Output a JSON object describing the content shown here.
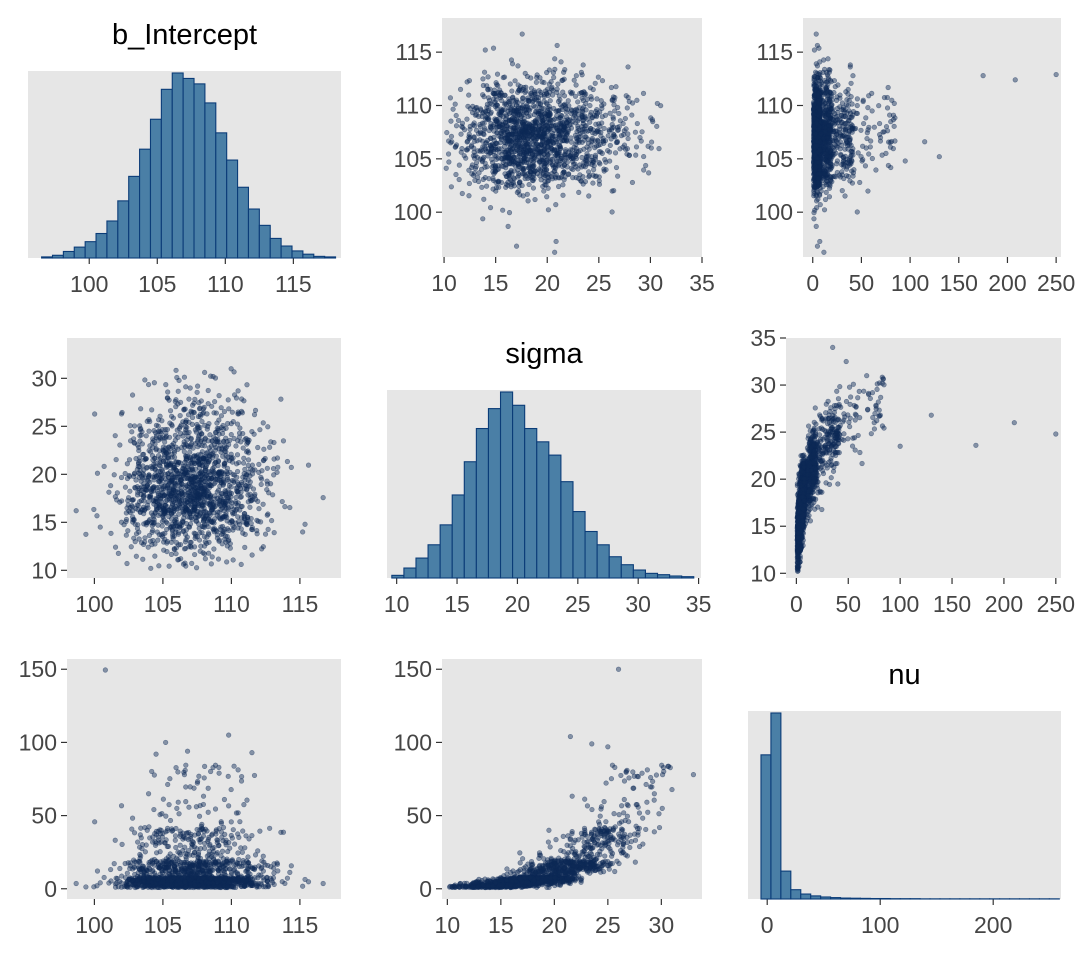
{
  "colors": {
    "panel_background": "#e6e6e6",
    "bar_fill": "#4a7fa6",
    "bar_outline": "#0b3c78",
    "point": "#0d2a57"
  },
  "chart_data": [
    {
      "type": "bar",
      "title": "b_Intercept",
      "xlim": [
        95.5,
        118.5
      ],
      "xticks": [
        100,
        105,
        110,
        115
      ],
      "tick_labels": [
        "100",
        "105",
        "110",
        "115"
      ],
      "bin_start": 96.5,
      "bin_width": 0.8,
      "values": [
        0.2,
        0.5,
        1.2,
        2,
        3,
        4.5,
        6.8,
        10.5,
        15,
        20,
        25.5,
        31,
        34,
        33,
        32,
        28.5,
        23,
        18,
        13,
        9,
        6,
        3.6,
        2.2,
        1.3,
        0.7,
        0.3,
        0.2
      ]
    },
    {
      "type": "scatter",
      "x_var": "sigma",
      "y_var": "b_Intercept",
      "xlim": [
        9.8,
        35
      ],
      "ylim": [
        95.8,
        118.2
      ],
      "xticks": [
        10,
        15,
        20,
        25,
        30,
        35
      ],
      "x_tick_labels": [
        "10",
        "15",
        "20",
        "25",
        "30",
        "35"
      ],
      "yticks": [
        100,
        105,
        110,
        115
      ],
      "y_tick_labels": [
        "100",
        "105",
        "110",
        "115"
      ]
    },
    {
      "type": "scatter",
      "x_var": "nu",
      "y_var": "b_Intercept",
      "xlim": [
        -10,
        255
      ],
      "ylim": [
        95.8,
        118.2
      ],
      "xticks": [
        0,
        50,
        100,
        150,
        200,
        250
      ],
      "x_tick_labels": [
        "0",
        "50",
        "100",
        "150",
        "200",
        "250"
      ],
      "yticks": [
        100,
        105,
        110,
        115
      ],
      "y_tick_labels": [
        "100",
        "105",
        "110",
        "115"
      ],
      "outliers": [
        [
          175,
          112.8
        ],
        [
          208,
          112.4
        ],
        [
          250,
          112.9
        ],
        [
          130,
          105.2
        ],
        [
          95,
          104.8
        ],
        [
          115,
          106.6
        ]
      ]
    },
    {
      "type": "scatter",
      "x_var": "b_Intercept",
      "y_var": "sigma",
      "xlim": [
        98,
        118
      ],
      "ylim": [
        9.2,
        34.2
      ],
      "xticks": [
        100,
        105,
        110,
        115
      ],
      "x_tick_labels": [
        "100",
        "105",
        "110",
        "115"
      ],
      "yticks": [
        10,
        15,
        20,
        25,
        30
      ],
      "y_tick_labels": [
        "10",
        "15",
        "20",
        "25",
        "30"
      ]
    },
    {
      "type": "bar",
      "title": "sigma",
      "xlim": [
        9.2,
        35.2
      ],
      "xticks": [
        10,
        15,
        20,
        25,
        30,
        35
      ],
      "tick_labels": [
        "10",
        "15",
        "20",
        "25",
        "30",
        "35"
      ],
      "bin_start": 9.6,
      "bin_width": 1,
      "values": [
        0.4,
        1.5,
        3,
        5,
        8,
        12.5,
        17.5,
        22.5,
        25.5,
        28,
        26,
        22.5,
        20.5,
        18.5,
        14.5,
        10,
        7,
        5,
        3.2,
        2,
        1.2,
        0.7,
        0.5,
        0.3,
        0.2
      ]
    },
    {
      "type": "scatter",
      "x_var": "nu",
      "y_var": "sigma",
      "xlim": [
        -10,
        255
      ],
      "ylim": [
        9.5,
        35
      ],
      "xticks": [
        0,
        50,
        100,
        150,
        200,
        250
      ],
      "x_tick_labels": [
        "0",
        "50",
        "100",
        "150",
        "200",
        "250"
      ],
      "yticks": [
        10,
        15,
        20,
        25,
        30,
        35
      ],
      "y_tick_labels": [
        "10",
        "15",
        "20",
        "25",
        "30",
        "35"
      ],
      "outliers": [
        [
          130,
          26.8
        ],
        [
          173,
          23.6
        ],
        [
          210,
          26
        ],
        [
          250,
          24.8
        ],
        [
          100,
          23.5
        ],
        [
          35,
          34
        ],
        [
          48,
          32.5
        ],
        [
          75,
          26
        ]
      ]
    },
    {
      "type": "scatter",
      "x_var": "b_Intercept",
      "y_var": "nu",
      "xlim": [
        98,
        118
      ],
      "ylim": [
        -7,
        157
      ],
      "xticks": [
        100,
        105,
        110,
        115
      ],
      "x_tick_labels": [
        "100",
        "105",
        "110",
        "115"
      ],
      "yticks": [
        0,
        50,
        100,
        150
      ],
      "y_tick_labels": [
        "0",
        "50",
        "100",
        "150"
      ],
      "outliers": [
        [
          100.8,
          149.5
        ],
        [
          105.2,
          100
        ],
        [
          104.5,
          92
        ],
        [
          106.8,
          94
        ],
        [
          109.8,
          105
        ],
        [
          111.5,
          93
        ]
      ]
    },
    {
      "type": "scatter",
      "x_var": "sigma",
      "y_var": "nu",
      "xlim": [
        9.5,
        33.8
      ],
      "ylim": [
        -7,
        157
      ],
      "xticks": [
        10,
        15,
        20,
        25,
        30
      ],
      "x_tick_labels": [
        "10",
        "15",
        "20",
        "25",
        "30"
      ],
      "yticks": [
        0,
        50,
        100,
        150
      ],
      "y_tick_labels": [
        "0",
        "50",
        "100",
        "150"
      ],
      "outliers": [
        [
          26,
          150
        ],
        [
          21.5,
          104
        ],
        [
          23.5,
          99
        ],
        [
          33,
          78
        ],
        [
          29,
          76
        ],
        [
          25,
          97
        ]
      ]
    },
    {
      "type": "bar",
      "title": "nu",
      "xlim": [
        -17,
        260
      ],
      "xticks": [
        0,
        100,
        200
      ],
      "tick_labels": [
        "0",
        "100",
        "200"
      ],
      "bin_start": -5.5,
      "bin_width": 8.8,
      "values": [
        93,
        120,
        18,
        6,
        3.2,
        2,
        1.3,
        0.9,
        0.6,
        0.5,
        0.4,
        0.3,
        0.3,
        0.2,
        0.2,
        0.2,
        0.1,
        0.1,
        0.1,
        0.1,
        0.1,
        0.1,
        0.1,
        0.1,
        0.1,
        0.1,
        0.1,
        0.1,
        0.1,
        0.1
      ]
    }
  ]
}
